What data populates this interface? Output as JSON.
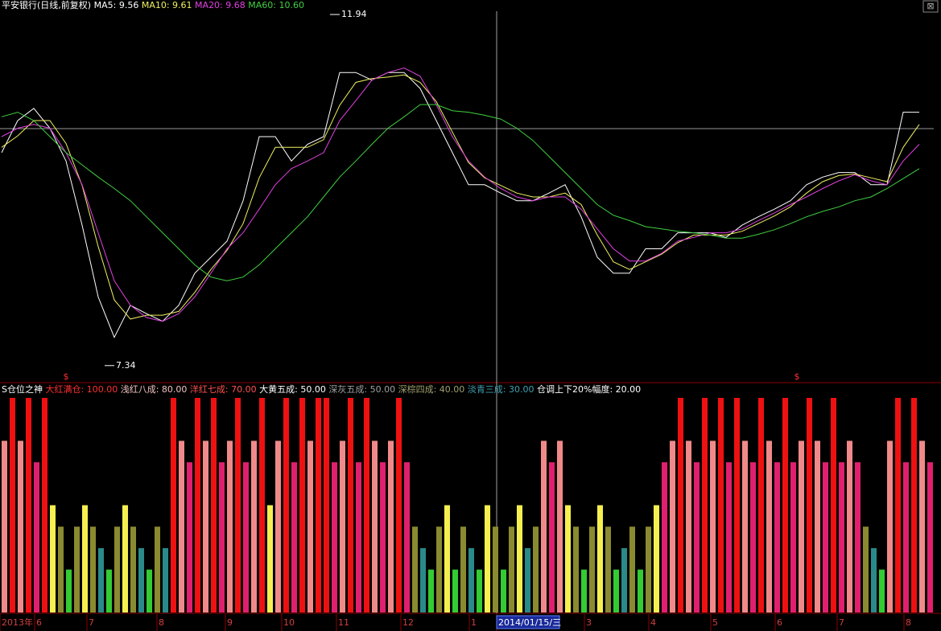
{
  "chart_data": [
    {
      "type": "line",
      "title": "平安银行(日线,前复权)",
      "categories": [
        null,
        null,
        null,
        null,
        null,
        null,
        null,
        null,
        null,
        null,
        null,
        null,
        null,
        null,
        null,
        null,
        null,
        null,
        null,
        null,
        null,
        null,
        null,
        null,
        null,
        null,
        null,
        null,
        null,
        null,
        null,
        null,
        null,
        null,
        null,
        null,
        null,
        null,
        null,
        null,
        null,
        null,
        null,
        null,
        null,
        null,
        null,
        null,
        null,
        null,
        null,
        null,
        null,
        null,
        null,
        null,
        null,
        null
      ],
      "ylim": [
        7.18,
        12.13
      ],
      "series": [
        {
          "name": "MA5:",
          "value_label": "9.56",
          "color": "#ffffff",
          "values": [
            10.13,
            10.55,
            10.71,
            10.45,
            10.02,
            9.18,
            8.24,
            7.71,
            8.13,
            8.02,
            7.92,
            8.13,
            8.55,
            8.76,
            8.97,
            9.5,
            10.34,
            10.34,
            10.02,
            10.24,
            10.34,
            11.18,
            11.18,
            11.08,
            11.18,
            11.18,
            10.97,
            10.55,
            10.13,
            9.71,
            9.71,
            9.6,
            9.5,
            9.5,
            9.6,
            9.71,
            9.29,
            8.76,
            8.55,
            8.55,
            8.87,
            8.87,
            9.08,
            9.08,
            9.08,
            9.02,
            9.18,
            9.29,
            9.39,
            9.5,
            9.71,
            9.81,
            9.87,
            9.87,
            9.71,
            9.71,
            10.66,
            10.66
          ]
        },
        {
          "name": "MA10:",
          "value_label": "9.61",
          "color": "#f0f060",
          "values": [
            10.2,
            10.35,
            10.55,
            10.55,
            10.25,
            9.7,
            8.9,
            8.2,
            7.95,
            8.0,
            8.0,
            8.05,
            8.3,
            8.6,
            8.85,
            9.2,
            9.8,
            10.2,
            10.2,
            10.2,
            10.3,
            10.75,
            11.05,
            11.1,
            11.12,
            11.15,
            11.05,
            10.8,
            10.4,
            10.0,
            9.8,
            9.7,
            9.6,
            9.55,
            9.55,
            9.6,
            9.45,
            9.05,
            8.7,
            8.6,
            8.7,
            8.8,
            8.95,
            9.05,
            9.05,
            9.05,
            9.1,
            9.2,
            9.3,
            9.42,
            9.6,
            9.75,
            9.83,
            9.85,
            9.8,
            9.75,
            10.2,
            10.5
          ]
        },
        {
          "name": "MA20:",
          "value_label": "9.68",
          "color": "#e040e0",
          "values": [
            10.34,
            10.45,
            10.5,
            10.45,
            10.13,
            9.71,
            9.08,
            8.45,
            8.13,
            7.97,
            7.92,
            8.02,
            8.24,
            8.55,
            8.87,
            9.08,
            9.39,
            9.71,
            9.92,
            10.02,
            10.13,
            10.55,
            10.81,
            11.08,
            11.18,
            11.24,
            11.13,
            10.76,
            10.34,
            10.02,
            9.81,
            9.66,
            9.55,
            9.5,
            9.55,
            9.55,
            9.39,
            9.13,
            8.87,
            8.71,
            8.71,
            8.81,
            8.97,
            9.02,
            9.08,
            9.08,
            9.13,
            9.24,
            9.34,
            9.45,
            9.55,
            9.66,
            9.76,
            9.84,
            9.76,
            9.71,
            10.02,
            10.24
          ]
        },
        {
          "name": "MA60:",
          "value_label": "10.60",
          "color": "#40d040",
          "values": [
            10.6,
            10.66,
            10.55,
            10.34,
            10.13,
            9.97,
            9.81,
            9.66,
            9.5,
            9.29,
            9.08,
            8.87,
            8.66,
            8.5,
            8.45,
            8.5,
            8.66,
            8.87,
            9.08,
            9.29,
            9.55,
            9.81,
            10.02,
            10.24,
            10.45,
            10.6,
            10.76,
            10.76,
            10.68,
            10.66,
            10.62,
            10.57,
            10.45,
            10.29,
            10.08,
            9.87,
            9.66,
            9.45,
            9.31,
            9.24,
            9.16,
            9.13,
            9.1,
            9.08,
            9.05,
            9.01,
            9.01,
            9.06,
            9.12,
            9.2,
            9.29,
            9.36,
            9.42,
            9.5,
            9.55,
            9.66,
            9.79,
            9.92
          ]
        }
      ],
      "annotations": [
        {
          "text": "11.94",
          "value": 11.94
        },
        {
          "text": "7.34",
          "value": 7.34
        }
      ],
      "markers": [
        "$",
        "$"
      ]
    },
    {
      "type": "bar",
      "title": "S仓位之神",
      "legend": [
        {
          "name": "大红满仓:",
          "value": 100,
          "value_label": "100.00",
          "color": "#ff3030",
          "bar_color": "#ee1111"
        },
        {
          "name": "浅红八成:",
          "value": 80,
          "value_label": "80.00",
          "color": "#f0c0c0",
          "bar_color": "#f08a8a"
        },
        {
          "name": "洋红七成:",
          "value": 70,
          "value_label": "70.00",
          "color": "#ff5050",
          "bar_color": "#e0206e"
        },
        {
          "name": "大黄五成:",
          "value": 50,
          "value_label": "50.00",
          "color": "#ffffff",
          "bar_color": "#f5f050"
        },
        {
          "name": "深灰五成:",
          "value": 50,
          "value_label": "50.00",
          "color": "#a0a0a0",
          "bar_color": "#909090"
        },
        {
          "name": "深棕四成:",
          "value": 40,
          "value_label": "40.00",
          "color": "#a0a070",
          "bar_color": "#8a8a30"
        },
        {
          "name": "淡青三成:",
          "value": 30,
          "value_label": "30.00",
          "color": "#40a0b0",
          "bar_color": "#2a8a8a"
        },
        {
          "name": "仓调上下20%幅度:",
          "value": 20,
          "value_label": "20.00",
          "color": "#ffffff",
          "bar_color": "#33cc33"
        }
      ],
      "categories": [
        null,
        null,
        null,
        null,
        null,
        null,
        null,
        null,
        null,
        null,
        null,
        null,
        null,
        null,
        null,
        null,
        null,
        null,
        null,
        null,
        null,
        null,
        null,
        null,
        null,
        null,
        null,
        null,
        null,
        null,
        null,
        null,
        null,
        null,
        null,
        null,
        null,
        null,
        null,
        null,
        null,
        null,
        null,
        null,
        null,
        null,
        null,
        null,
        null,
        null,
        null,
        null,
        null,
        null,
        null,
        null,
        null,
        null,
        null,
        null,
        null,
        null,
        null,
        null,
        null,
        null,
        null,
        null,
        null,
        null,
        null,
        null,
        null,
        null,
        null,
        null,
        null,
        null,
        null,
        null,
        null,
        null,
        null,
        null,
        null,
        null,
        null,
        null,
        null,
        null,
        null,
        null,
        null,
        null,
        null,
        null,
        null,
        null,
        null,
        null,
        null,
        null,
        null,
        null,
        null,
        null,
        null,
        null,
        null,
        null,
        null,
        null,
        null,
        null,
        null,
        null
      ],
      "values": [
        80,
        100,
        80,
        100,
        70,
        100,
        50,
        40,
        20,
        40,
        50,
        40,
        30,
        20,
        40,
        50,
        40,
        30,
        20,
        40,
        30,
        100,
        80,
        70,
        100,
        80,
        100,
        70,
        80,
        100,
        70,
        80,
        100,
        50,
        80,
        100,
        70,
        100,
        80,
        100,
        100,
        70,
        80,
        100,
        70,
        100,
        80,
        70,
        80,
        100,
        70,
        40,
        30,
        20,
        40,
        50,
        20,
        40,
        30,
        20,
        50,
        40,
        20,
        40,
        50,
        30,
        40,
        80,
        70,
        80,
        50,
        40,
        20,
        40,
        50,
        40,
        20,
        30,
        40,
        20,
        40,
        50,
        70,
        80,
        100,
        80,
        70,
        100,
        80,
        100,
        70,
        100,
        80,
        70,
        100,
        80,
        70,
        100,
        70,
        80,
        100,
        80,
        70,
        100,
        70,
        80,
        70,
        40,
        30,
        20,
        80,
        100,
        70,
        100,
        80,
        70
      ],
      "ylim": [
        0,
        100
      ]
    }
  ],
  "time_axis": {
    "labels": [
      "2013年",
      "6",
      "7",
      "8",
      "9",
      "10",
      "11",
      "12",
      "1",
      "2014/01/15/三",
      "3",
      "4",
      "5",
      "6",
      "7",
      "8"
    ],
    "highlight": 9
  }
}
